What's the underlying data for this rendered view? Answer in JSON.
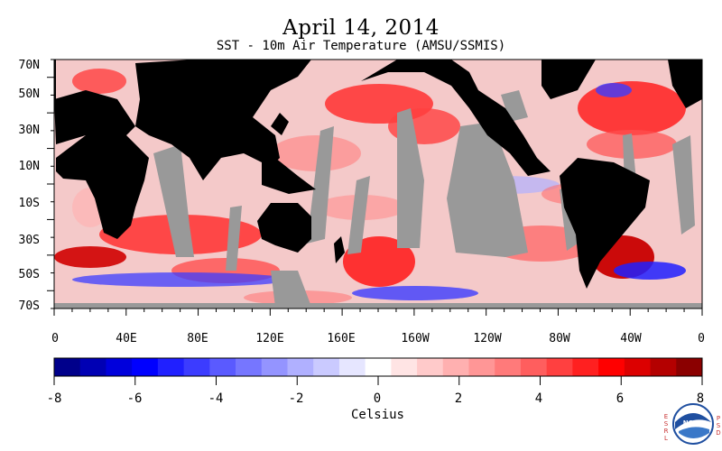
{
  "title": "April 14, 2014",
  "subtitle": "SST - 10m Air Temperature (AMSU/SSMIS)",
  "lat_labels": [
    "70N",
    "50N",
    "30N",
    "10N",
    "10S",
    "30S",
    "50S",
    "70S"
  ],
  "lon_labels": [
    "0",
    "40E",
    "80E",
    "120E",
    "160E",
    "160W",
    "120W",
    "80W",
    "40W",
    "0"
  ],
  "colorbar": {
    "ticks": [
      "-8",
      "-6",
      "-4",
      "-2",
      "0",
      "2",
      "4",
      "6",
      "8"
    ],
    "range": [
      -8,
      8
    ],
    "unit_label": "Celsius",
    "colors": [
      "#00008b",
      "#0000b4",
      "#0000dc",
      "#0000ff",
      "#2020ff",
      "#3c3cff",
      "#5a5aff",
      "#7676ff",
      "#9494ff",
      "#b0b0ff",
      "#cacaff",
      "#e6e6ff",
      "#ffffff",
      "#ffe4e4",
      "#ffcaca",
      "#ffb0b0",
      "#ff9696",
      "#ff7a7a",
      "#ff5e5e",
      "#ff4040",
      "#ff2020",
      "#ff0000",
      "#dc0000",
      "#b40000",
      "#8b0000"
    ]
  },
  "map_colors": {
    "land": "#000000",
    "no_data": "#999999"
  },
  "logo": {
    "left_text": [
      "E",
      "S",
      "R",
      "L"
    ],
    "right_text": [
      "P",
      "S",
      "D"
    ],
    "badge": "NOAA"
  }
}
